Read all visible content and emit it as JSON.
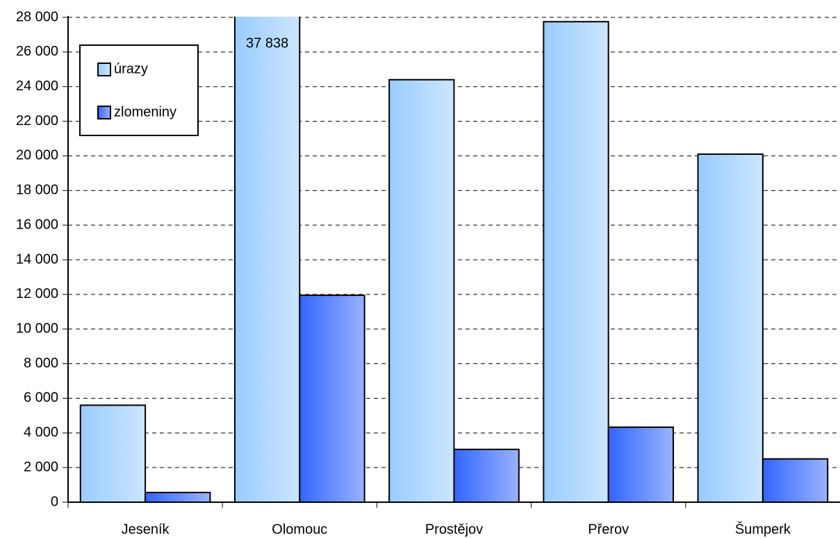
{
  "chart_data": {
    "type": "bar",
    "categories": [
      "Jeseník",
      "Olomouc",
      "Prostějov",
      "Přerov",
      "Šumperk"
    ],
    "series": [
      {
        "name": "úrazy",
        "color": "#99ccff",
        "values": [
          5600,
          37838,
          24400,
          27750,
          20100
        ],
        "value_labels": [
          null,
          "37 838",
          null,
          null,
          null
        ]
      },
      {
        "name": "zlomeniny",
        "color": "#3366ff",
        "values": [
          560,
          11950,
          3050,
          4330,
          2500
        ]
      }
    ],
    "ylim": [
      0,
      28000
    ],
    "yticks": [
      0,
      {
        "value": 2000,
        "label": "2 000"
      },
      {
        "value": 4000,
        "label": "4 000"
      },
      {
        "value": 6000,
        "label": "6 000"
      },
      {
        "value": 8000,
        "label": "8 000"
      },
      {
        "value": 10000,
        "label": "10 000"
      },
      {
        "value": 12000,
        "label": "12 000"
      },
      {
        "value": 14000,
        "label": "14 000"
      },
      {
        "value": 16000,
        "label": "16 000"
      },
      {
        "value": 18000,
        "label": "18 000"
      },
      {
        "value": 20000,
        "label": "20 000"
      },
      {
        "value": 22000,
        "label": "22 000"
      },
      {
        "value": 24000,
        "label": "24 000"
      },
      {
        "value": 26000,
        "label": "26 000"
      },
      {
        "value": 28000,
        "label": "28 000"
      }
    ],
    "grid": true,
    "legend": "upper left"
  }
}
